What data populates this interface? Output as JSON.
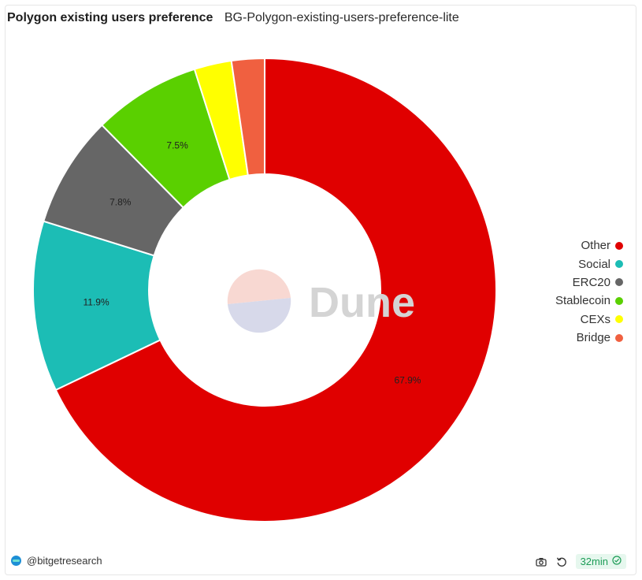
{
  "header": {
    "title": "Polygon existing users preference",
    "subtitle": "BG-Polygon-existing-users-preference-lite"
  },
  "watermark": {
    "text": "Dune"
  },
  "chart_data": {
    "type": "pie",
    "donut": true,
    "categories": [
      "Other",
      "Social",
      "ERC20",
      "Stablecoin",
      "CEXs",
      "Bridge"
    ],
    "values": [
      67.9,
      11.9,
      7.8,
      7.5,
      2.6,
      2.3
    ],
    "data_labels": [
      "67.9%",
      "11.9%",
      "7.8%",
      "7.5%",
      "",
      ""
    ],
    "colors": [
      "#e00000",
      "#1cbdb5",
      "#666666",
      "#5ad000",
      "#ffff00",
      "#f06040"
    ],
    "legend": "right"
  },
  "footer": {
    "author": "@bitgetresearch",
    "refresh_label": "32min",
    "icons": [
      "camera-icon",
      "refresh-icon",
      "check-circle-icon"
    ]
  }
}
